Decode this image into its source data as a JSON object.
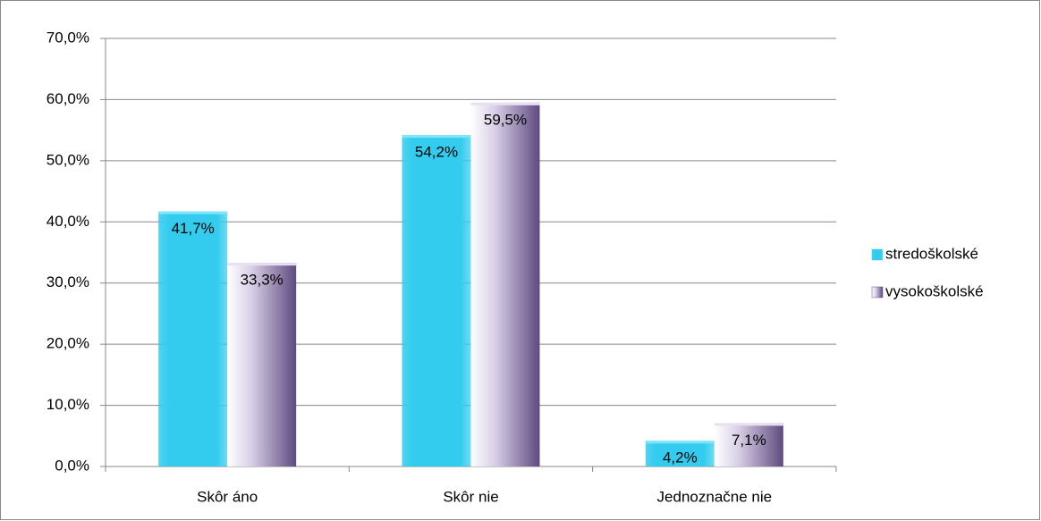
{
  "chart_data": {
    "type": "bar",
    "categories": [
      "Skôr áno",
      "Skôr nie",
      "Jednoznačne nie"
    ],
    "series": [
      {
        "name": "stredoškolské",
        "color": "#33ccee",
        "values": [
          41.7,
          54.2,
          4.2
        ],
        "value_labels": [
          "41,7%",
          "54,2%",
          "4,2%"
        ]
      },
      {
        "name": "vysokoškolské",
        "color": "#5e4a80",
        "values": [
          33.3,
          59.5,
          7.1
        ],
        "value_labels": [
          "33,3%",
          "59,5%",
          "7,1%"
        ]
      }
    ],
    "ylim": [
      0,
      70
    ],
    "yticks": [
      {
        "value": 0,
        "label": "0,0%"
      },
      {
        "value": 10,
        "label": "10,0%"
      },
      {
        "value": 20,
        "label": "20,0%"
      },
      {
        "value": 30,
        "label": "30,0%"
      },
      {
        "value": 40,
        "label": "40,0%"
      },
      {
        "value": 50,
        "label": "50,0%"
      },
      {
        "value": 60,
        "label": "60,0%"
      },
      {
        "value": 70,
        "label": "70,0%"
      }
    ],
    "grid": true,
    "legend": "right"
  }
}
